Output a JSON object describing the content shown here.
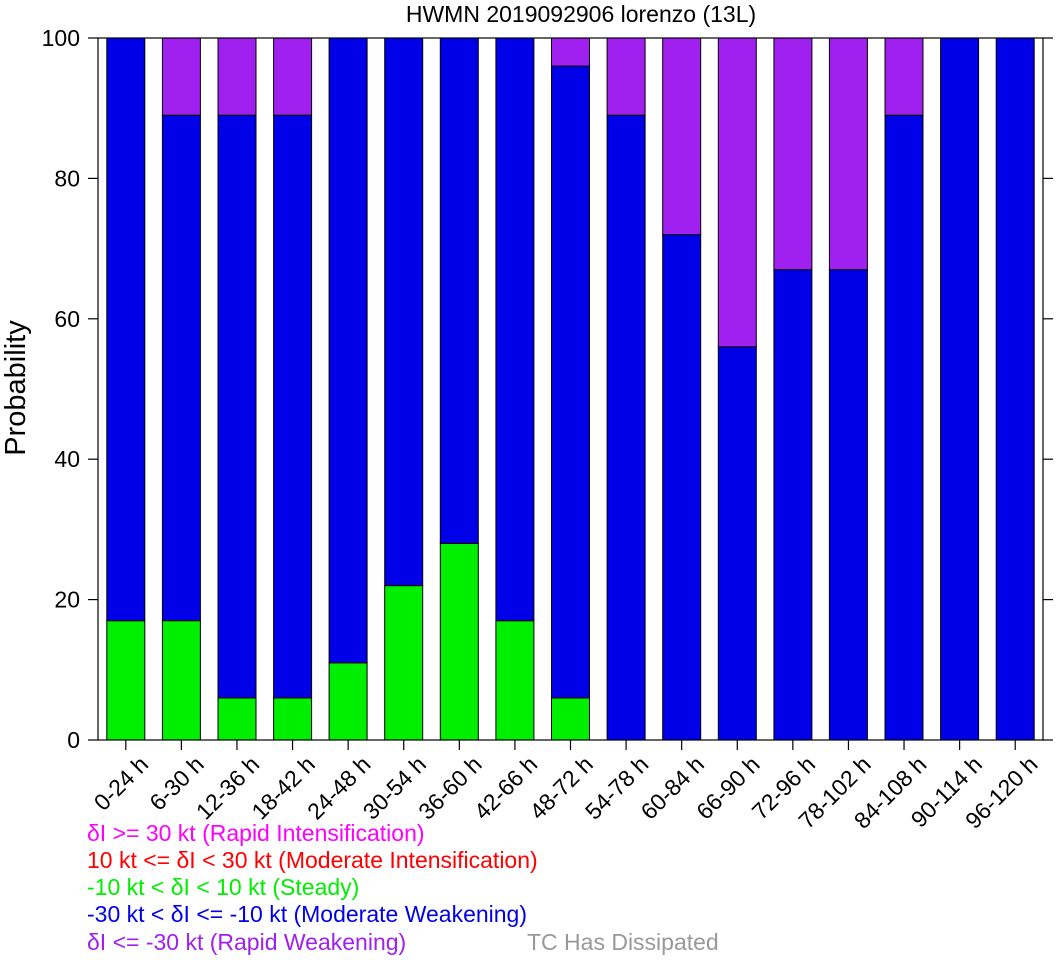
{
  "chart_data": {
    "type": "bar",
    "stacked": true,
    "title": "HWMN 2019092906 lorenzo (13L)",
    "xlabel": "",
    "ylabel": "Probability",
    "ylim": [
      0,
      100
    ],
    "yticks": [
      0,
      20,
      40,
      60,
      80,
      100
    ],
    "grid": false,
    "categories": [
      "0-24 h",
      "6-30 h",
      "12-36 h",
      "18-42 h",
      "24-48 h",
      "30-54 h",
      "36-60 h",
      "42-66 h",
      "48-72 h",
      "54-78 h",
      "60-84 h",
      "66-90 h",
      "72-96 h",
      "78-102 h",
      "84-108 h",
      "90-114 h",
      "96-120 h"
    ],
    "series": [
      {
        "color": "#00ee00",
        "values": [
          17,
          17,
          6,
          6,
          11,
          22,
          28,
          17,
          6,
          0,
          0,
          0,
          0,
          0,
          0,
          0,
          0
        ]
      },
      {
        "color": "#0000e8",
        "values": [
          83,
          72,
          83,
          83,
          89,
          78,
          72,
          83,
          90,
          89,
          72,
          56,
          67,
          67,
          89,
          100,
          100
        ]
      },
      {
        "color": "#a020f0",
        "values": [
          0,
          11,
          11,
          11,
          0,
          0,
          0,
          0,
          4,
          11,
          28,
          44,
          33,
          33,
          11,
          0,
          0
        ]
      }
    ],
    "legend": {
      "placement": "bottom-left",
      "entries": [
        {
          "label": "δI >= 30 kt (Rapid Intensification)",
          "color": "#ff00ff"
        },
        {
          "label": "10 kt <= δI < 30 kt (Moderate Intensification)",
          "color": "#ff0000"
        },
        {
          "label": "-10 kt < δI < 10 kt (Steady)",
          "color": "#00ee00"
        },
        {
          "label": "-30 kt < δI <= -10 kt (Moderate Weakening)",
          "color": "#0000e8"
        },
        {
          "label": "δI <= -30 kt (Rapid Weakening)",
          "color": "#a020f0"
        },
        {
          "label": "TC Has Dissipated",
          "color": "#999999"
        }
      ]
    }
  }
}
